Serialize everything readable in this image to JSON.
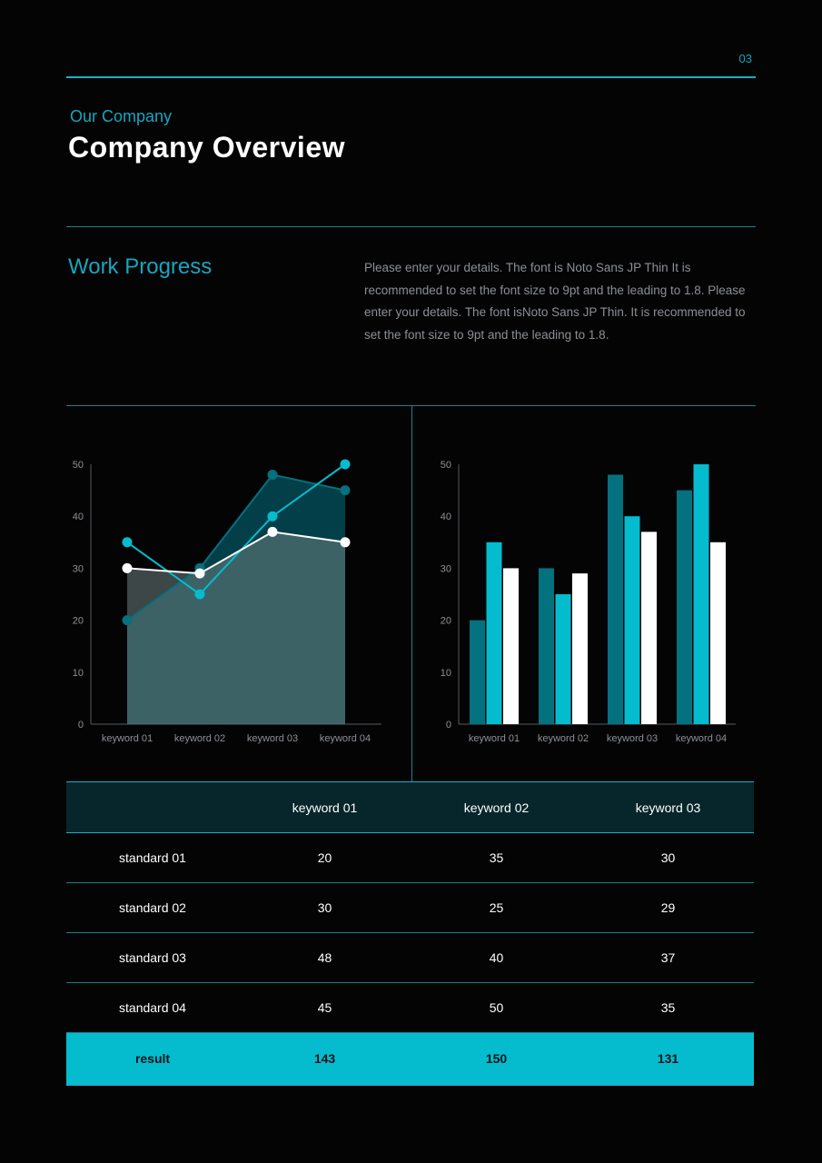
{
  "page_number": "03",
  "header": {
    "eyebrow": "Our Company",
    "title": "Company Overview"
  },
  "section": {
    "title": "Work Progress",
    "description": "Please enter your details. The font is Noto Sans JP Thin It is recommended to set the font size to 9pt and the leading to 1.8. Please enter your details. The font isNoto Sans JP Thin. It is recommended to set the font size to 9pt and the leading to 1.8."
  },
  "colors": {
    "accent": "#17a6bd",
    "dark_teal": "#04717f",
    "cyan": "#05bccf",
    "white": "#ffffff"
  },
  "chart_data": [
    {
      "type": "line",
      "categories": [
        "keyword 01",
        "keyword 02",
        "keyword 03",
        "keyword 04"
      ],
      "ylim": [
        0,
        50
      ],
      "yticks": [
        0,
        10,
        20,
        30,
        40,
        50
      ],
      "series": [
        {
          "values": [
            20,
            30,
            48,
            45
          ],
          "color": "#04717f",
          "fill": "area"
        },
        {
          "values": [
            35,
            25,
            40,
            50
          ],
          "color": "#05bccf"
        },
        {
          "values": [
            30,
            29,
            37,
            35
          ],
          "color": "#ffffff",
          "fill": "area"
        }
      ]
    },
    {
      "type": "bar",
      "categories": [
        "keyword 01",
        "keyword 02",
        "keyword 03",
        "keyword 04"
      ],
      "ylim": [
        0,
        50
      ],
      "yticks": [
        0,
        10,
        20,
        30,
        40,
        50
      ],
      "series": [
        {
          "values": [
            20,
            30,
            48,
            45
          ],
          "color": "#04717f"
        },
        {
          "values": [
            35,
            25,
            40,
            50
          ],
          "color": "#05bccf"
        },
        {
          "values": [
            30,
            29,
            37,
            35
          ],
          "color": "#ffffff"
        }
      ]
    }
  ],
  "table": {
    "headers": [
      "",
      "keyword 01",
      "keyword 02",
      "keyword 03"
    ],
    "rows": [
      [
        "standard 01",
        "20",
        "35",
        "30"
      ],
      [
        "standard 02",
        "30",
        "25",
        "29"
      ],
      [
        "standard 03",
        "48",
        "40",
        "37"
      ],
      [
        "standard 04",
        "45",
        "50",
        "35"
      ]
    ],
    "result": [
      "result",
      "143",
      "150",
      "131"
    ]
  }
}
